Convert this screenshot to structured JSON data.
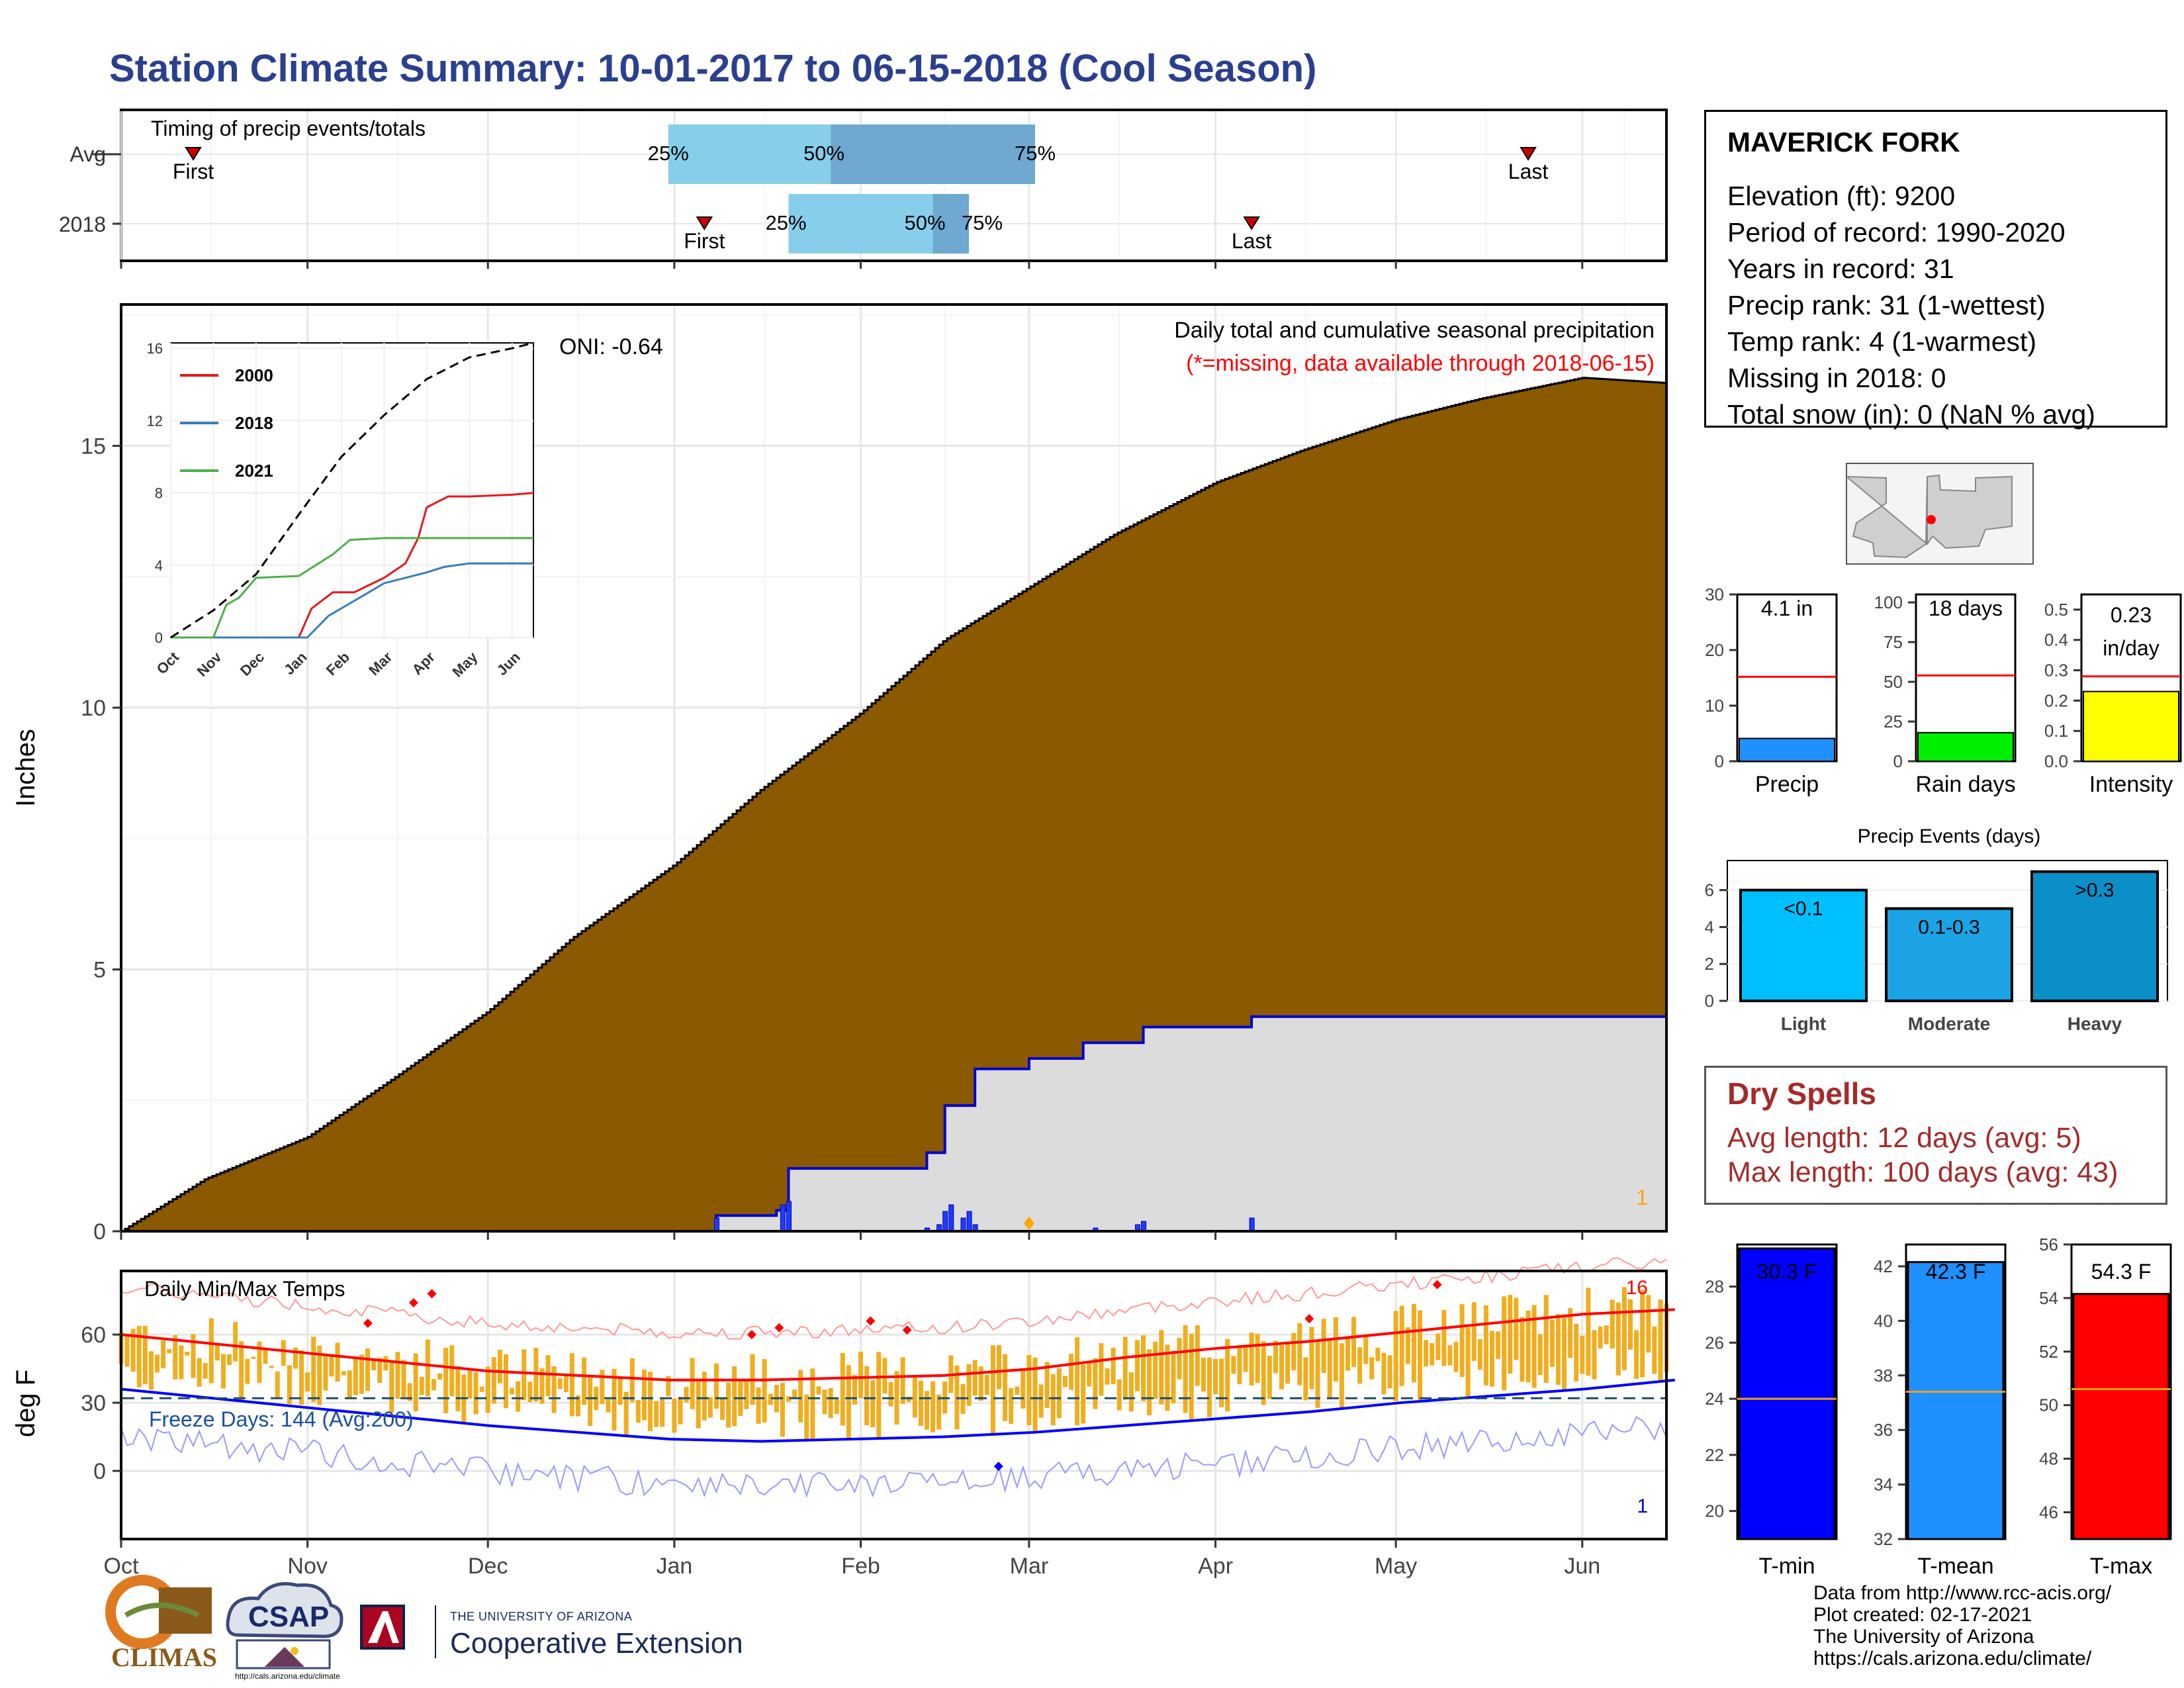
{
  "title": "Station Climate Summary: 10-01-2017 to 06-15-2018 (Cool Season)",
  "timing": {
    "title": "Timing of precip events/totals",
    "row_labels": [
      "Avg",
      "2018"
    ],
    "rows": [
      {
        "label": "Avg",
        "first": "2017-10-13",
        "p25": "2017-12-31",
        "p50": "2018-01-27",
        "p75": "2018-03-02",
        "last": "2018-05-23"
      },
      {
        "label": "2018",
        "first": "2018-01-06",
        "p25": "2018-01-20",
        "p50": "2018-02-13",
        "p75": "2018-02-19",
        "last": "2018-04-07"
      }
    ],
    "first_label": "First",
    "last_label": "Last",
    "p25_label": "25%",
    "p50_label": "50%",
    "p75_label": "75%"
  },
  "precip_panel": {
    "title": "Daily total and cumulative seasonal precipitation",
    "subtitle": "(*=missing, data available through 2018-06-15)",
    "ylabel": "Inches",
    "oni": "ONI: -0.64",
    "corner_count": "1"
  },
  "temp_panel": {
    "title": "Daily Min/Max Temps",
    "ylabel": "deg F",
    "freeze_text": "Freeze Days: 144 (Avg:200)",
    "record_high_count": "16",
    "record_low_count": "1"
  },
  "x_axis": {
    "ticks": [
      "Oct",
      "Nov",
      "Dec",
      "Jan",
      "Feb",
      "Mar",
      "Apr",
      "May",
      "Jun"
    ]
  },
  "station": {
    "name": "MAVERICK FORK",
    "lines": [
      "Elevation (ft): 9200",
      "Period of record: 1990-2020",
      "Years in record: 31",
      "Precip rank: 31 (1-wettest)",
      "Temp rank: 4 (1-warmest)",
      "Missing in 2018: 0",
      "Total snow (in): 0 (NaN % avg)"
    ]
  },
  "summary_bars": [
    {
      "name": "Precip",
      "label": "4.1 in",
      "value": 4.1,
      "avg": 15.2,
      "ymax": 30,
      "ticks": [
        "0",
        "10",
        "20",
        "30"
      ],
      "color": "#1e90ff"
    },
    {
      "name": "Rain days",
      "label": "18 days",
      "value": 18,
      "avg": 54,
      "ymax": 105,
      "ticks": [
        "0",
        "25",
        "50",
        "75",
        "100"
      ],
      "color": "#00ee00"
    },
    {
      "name": "Intensity",
      "label": "0.23",
      "label2": "in/day",
      "value": 0.23,
      "avg": 0.28,
      "ymax": 0.55,
      "ticks": [
        "0.0",
        "0.1",
        "0.2",
        "0.3",
        "0.4",
        "0.5"
      ],
      "color": "#ffff00"
    }
  ],
  "precip_events": {
    "title": "Precip Events (days)",
    "categories": [
      "Light",
      "Moderate",
      "Heavy"
    ],
    "labels": [
      "<0.1",
      "0.1-0.3",
      ">0.3"
    ],
    "values": [
      6,
      5,
      7
    ],
    "ticks": [
      "0",
      "2",
      "4",
      "6"
    ],
    "colors": [
      "#00bfff",
      "#1ca3e6",
      "#0a8fc8"
    ]
  },
  "dry_spells": {
    "title": "Dry Spells",
    "lines": [
      "Avg length: 12 days (avg: 5)",
      "Max length: 100 days (avg: 43)"
    ]
  },
  "temp_bars": [
    {
      "name": "T-min",
      "label": "30.3 F",
      "value": 30.3,
      "avg": 24.0,
      "ymin": 19,
      "ymax": 29.5,
      "ticks": [
        "20",
        "22",
        "24",
        "26",
        "28"
      ],
      "color": "#0000ff"
    },
    {
      "name": "T-mean",
      "label": "42.3 F",
      "value": 42.3,
      "avg": 37.4,
      "ymin": 32,
      "ymax": 42.8,
      "ticks": [
        "32",
        "34",
        "36",
        "38",
        "40",
        "42"
      ],
      "color": "#1e90ff"
    },
    {
      "name": "T-max",
      "label": "54.3 F",
      "value": 54.3,
      "avg": 50.6,
      "ymin": 45,
      "ymax": 56,
      "ticks": [
        "46",
        "48",
        "50",
        "52",
        "54",
        "56"
      ],
      "color": "#ff0000"
    }
  ],
  "credits": [
    "Data from http://www.rcc-acis.org/",
    "Plot created: 02-17-2021",
    "The University of Arizona",
    "https://cals.arizona.edu/climate/"
  ],
  "logos": {
    "climas": "CLIMAS",
    "csap": "CSAP",
    "csap_url": "http://cals.arizona.edu/climate",
    "ua_small": "THE UNIVERSITY OF ARIZONA",
    "ua_big": "Cooperative Extension"
  },
  "chart_data": [
    {
      "type": "area",
      "name": "cumulative precipitation",
      "title": "Daily total and cumulative seasonal precipitation",
      "ylabel": "Inches",
      "x_range": [
        "2017-10-01",
        "2018-06-15"
      ],
      "ylim": [
        0,
        17.7
      ],
      "yticks": [
        0,
        5,
        10,
        15
      ],
      "series": [
        {
          "name": "avg cumulative",
          "color": "#8b5a00",
          "x": [
            "2017-10-01",
            "2017-10-15",
            "2017-11-01",
            "2017-11-15",
            "2017-12-01",
            "2017-12-15",
            "2018-01-01",
            "2018-01-15",
            "2018-02-01",
            "2018-02-15",
            "2018-03-01",
            "2018-03-15",
            "2018-04-01",
            "2018-04-15",
            "2018-05-01",
            "2018-05-15",
            "2018-06-01",
            "2018-06-15"
          ],
          "values": [
            0,
            1.0,
            1.8,
            2.9,
            4.2,
            5.6,
            7.0,
            8.4,
            9.9,
            11.3,
            12.3,
            13.3,
            14.3,
            14.9,
            15.5,
            15.9,
            16.3,
            16.2
          ]
        },
        {
          "name": "2018 cumulative",
          "color": "#0000cd",
          "x": [
            "2017-10-01",
            "2018-01-08",
            "2018-01-18",
            "2018-01-20",
            "2018-02-08",
            "2018-02-12",
            "2018-02-15",
            "2018-02-20",
            "2018-03-01",
            "2018-03-10",
            "2018-03-20",
            "2018-04-07",
            "2018-06-15"
          ],
          "values": [
            0,
            0.3,
            0.4,
            1.2,
            1.2,
            1.5,
            2.4,
            3.1,
            3.3,
            3.6,
            3.9,
            4.1,
            4.1
          ]
        },
        {
          "name": "daily precip 2018",
          "x": [
            "2018-01-08",
            "2018-01-19",
            "2018-01-20",
            "2018-02-12",
            "2018-02-14",
            "2018-02-15",
            "2018-02-16",
            "2018-02-18",
            "2018-02-19",
            "2018-02-20",
            "2018-03-12",
            "2018-03-19",
            "2018-03-20",
            "2018-04-07"
          ],
          "values": [
            0.2,
            0.4,
            0.45,
            0.05,
            0.1,
            0.3,
            0.4,
            0.2,
            0.3,
            0.1,
            0.05,
            0.1,
            0.15,
            0.2
          ]
        }
      ]
    },
    {
      "type": "line",
      "name": "inset cumulative",
      "x_ticks": [
        "Oct",
        "Nov",
        "Dec",
        "Jan",
        "Feb",
        "Mar",
        "Apr",
        "May",
        "Jun"
      ],
      "ylim": [
        0,
        16
      ],
      "yticks": [
        0,
        4,
        8,
        12,
        16
      ],
      "series": [
        {
          "name": "2000",
          "color": "#e41a1c",
          "x_months": [
            0,
            3.0,
            3.3,
            3.8,
            4.3,
            5.0,
            5.5,
            5.8,
            6.0,
            6.5,
            7.0,
            8.0,
            8.5
          ],
          "values": [
            0,
            0,
            1.6,
            2.5,
            2.5,
            3.3,
            4.1,
            5.5,
            7.2,
            7.8,
            7.8,
            7.9,
            8.0
          ]
        },
        {
          "name": "2018",
          "color": "#377eb8",
          "x_months": [
            0,
            3.2,
            3.7,
            4.5,
            5.0,
            5.5,
            6.0,
            6.4,
            7.0,
            8.5
          ],
          "values": [
            0,
            0,
            1.2,
            2.3,
            3.0,
            3.3,
            3.6,
            3.9,
            4.1,
            4.1
          ]
        },
        {
          "name": "2021",
          "color": "#4daf4a",
          "x_months": [
            0,
            1.0,
            1.3,
            1.6,
            2.0,
            3.0,
            3.8,
            4.2,
            5.0,
            6.0,
            7.0,
            8.5
          ],
          "values": [
            0,
            0,
            1.8,
            2.2,
            3.3,
            3.4,
            4.6,
            5.4,
            5.5,
            5.5,
            5.5,
            5.5
          ]
        },
        {
          "name": "record",
          "color": "#000000",
          "x_months": [
            0,
            1,
            2,
            3,
            4,
            5,
            6,
            7,
            8,
            8.5
          ],
          "values": [
            0,
            1.5,
            3.5,
            6.8,
            10.0,
            12.3,
            14.3,
            15.5,
            16.0,
            16.3
          ]
        }
      ]
    },
    {
      "type": "line",
      "name": "daily temps",
      "title": "Daily Min/Max Temps",
      "ylabel": "deg F",
      "ylim": [
        -30,
        88
      ],
      "yticks": [
        0,
        30,
        60
      ],
      "freeze_line": 32,
      "series": [
        {
          "name": "avg max",
          "color": "#ff0000",
          "x_months": [
            0,
            0.5,
            1,
            1.5,
            2,
            2.5,
            3,
            3.5,
            4,
            4.5,
            5,
            5.5,
            6,
            6.5,
            7,
            7.5,
            8,
            8.5
          ],
          "values": [
            60,
            56,
            52,
            48,
            44,
            42,
            40,
            40,
            41,
            42,
            45,
            50,
            54,
            57,
            61,
            65,
            69,
            71
          ]
        },
        {
          "name": "avg min",
          "color": "#0000ff",
          "x_months": [
            0,
            0.5,
            1,
            1.5,
            2,
            2.5,
            3,
            3.5,
            4,
            4.5,
            5,
            5.5,
            6,
            6.5,
            7,
            7.5,
            8,
            8.5
          ],
          "values": [
            36,
            32,
            28,
            24,
            20,
            17,
            14,
            13,
            14,
            15,
            17,
            20,
            23,
            26,
            30,
            33,
            36,
            40
          ]
        }
      ]
    },
    {
      "type": "bar",
      "name": "precip events",
      "title": "Precip Events (days)",
      "categories": [
        "Light",
        "Moderate",
        "Heavy"
      ],
      "values": [
        6,
        5,
        7
      ]
    },
    {
      "type": "bar",
      "name": "temp summary",
      "categories": [
        "T-min",
        "T-mean",
        "T-max"
      ],
      "values": [
        30.3,
        42.3,
        54.3
      ],
      "avg": [
        24.0,
        37.4,
        50.6
      ]
    }
  ]
}
